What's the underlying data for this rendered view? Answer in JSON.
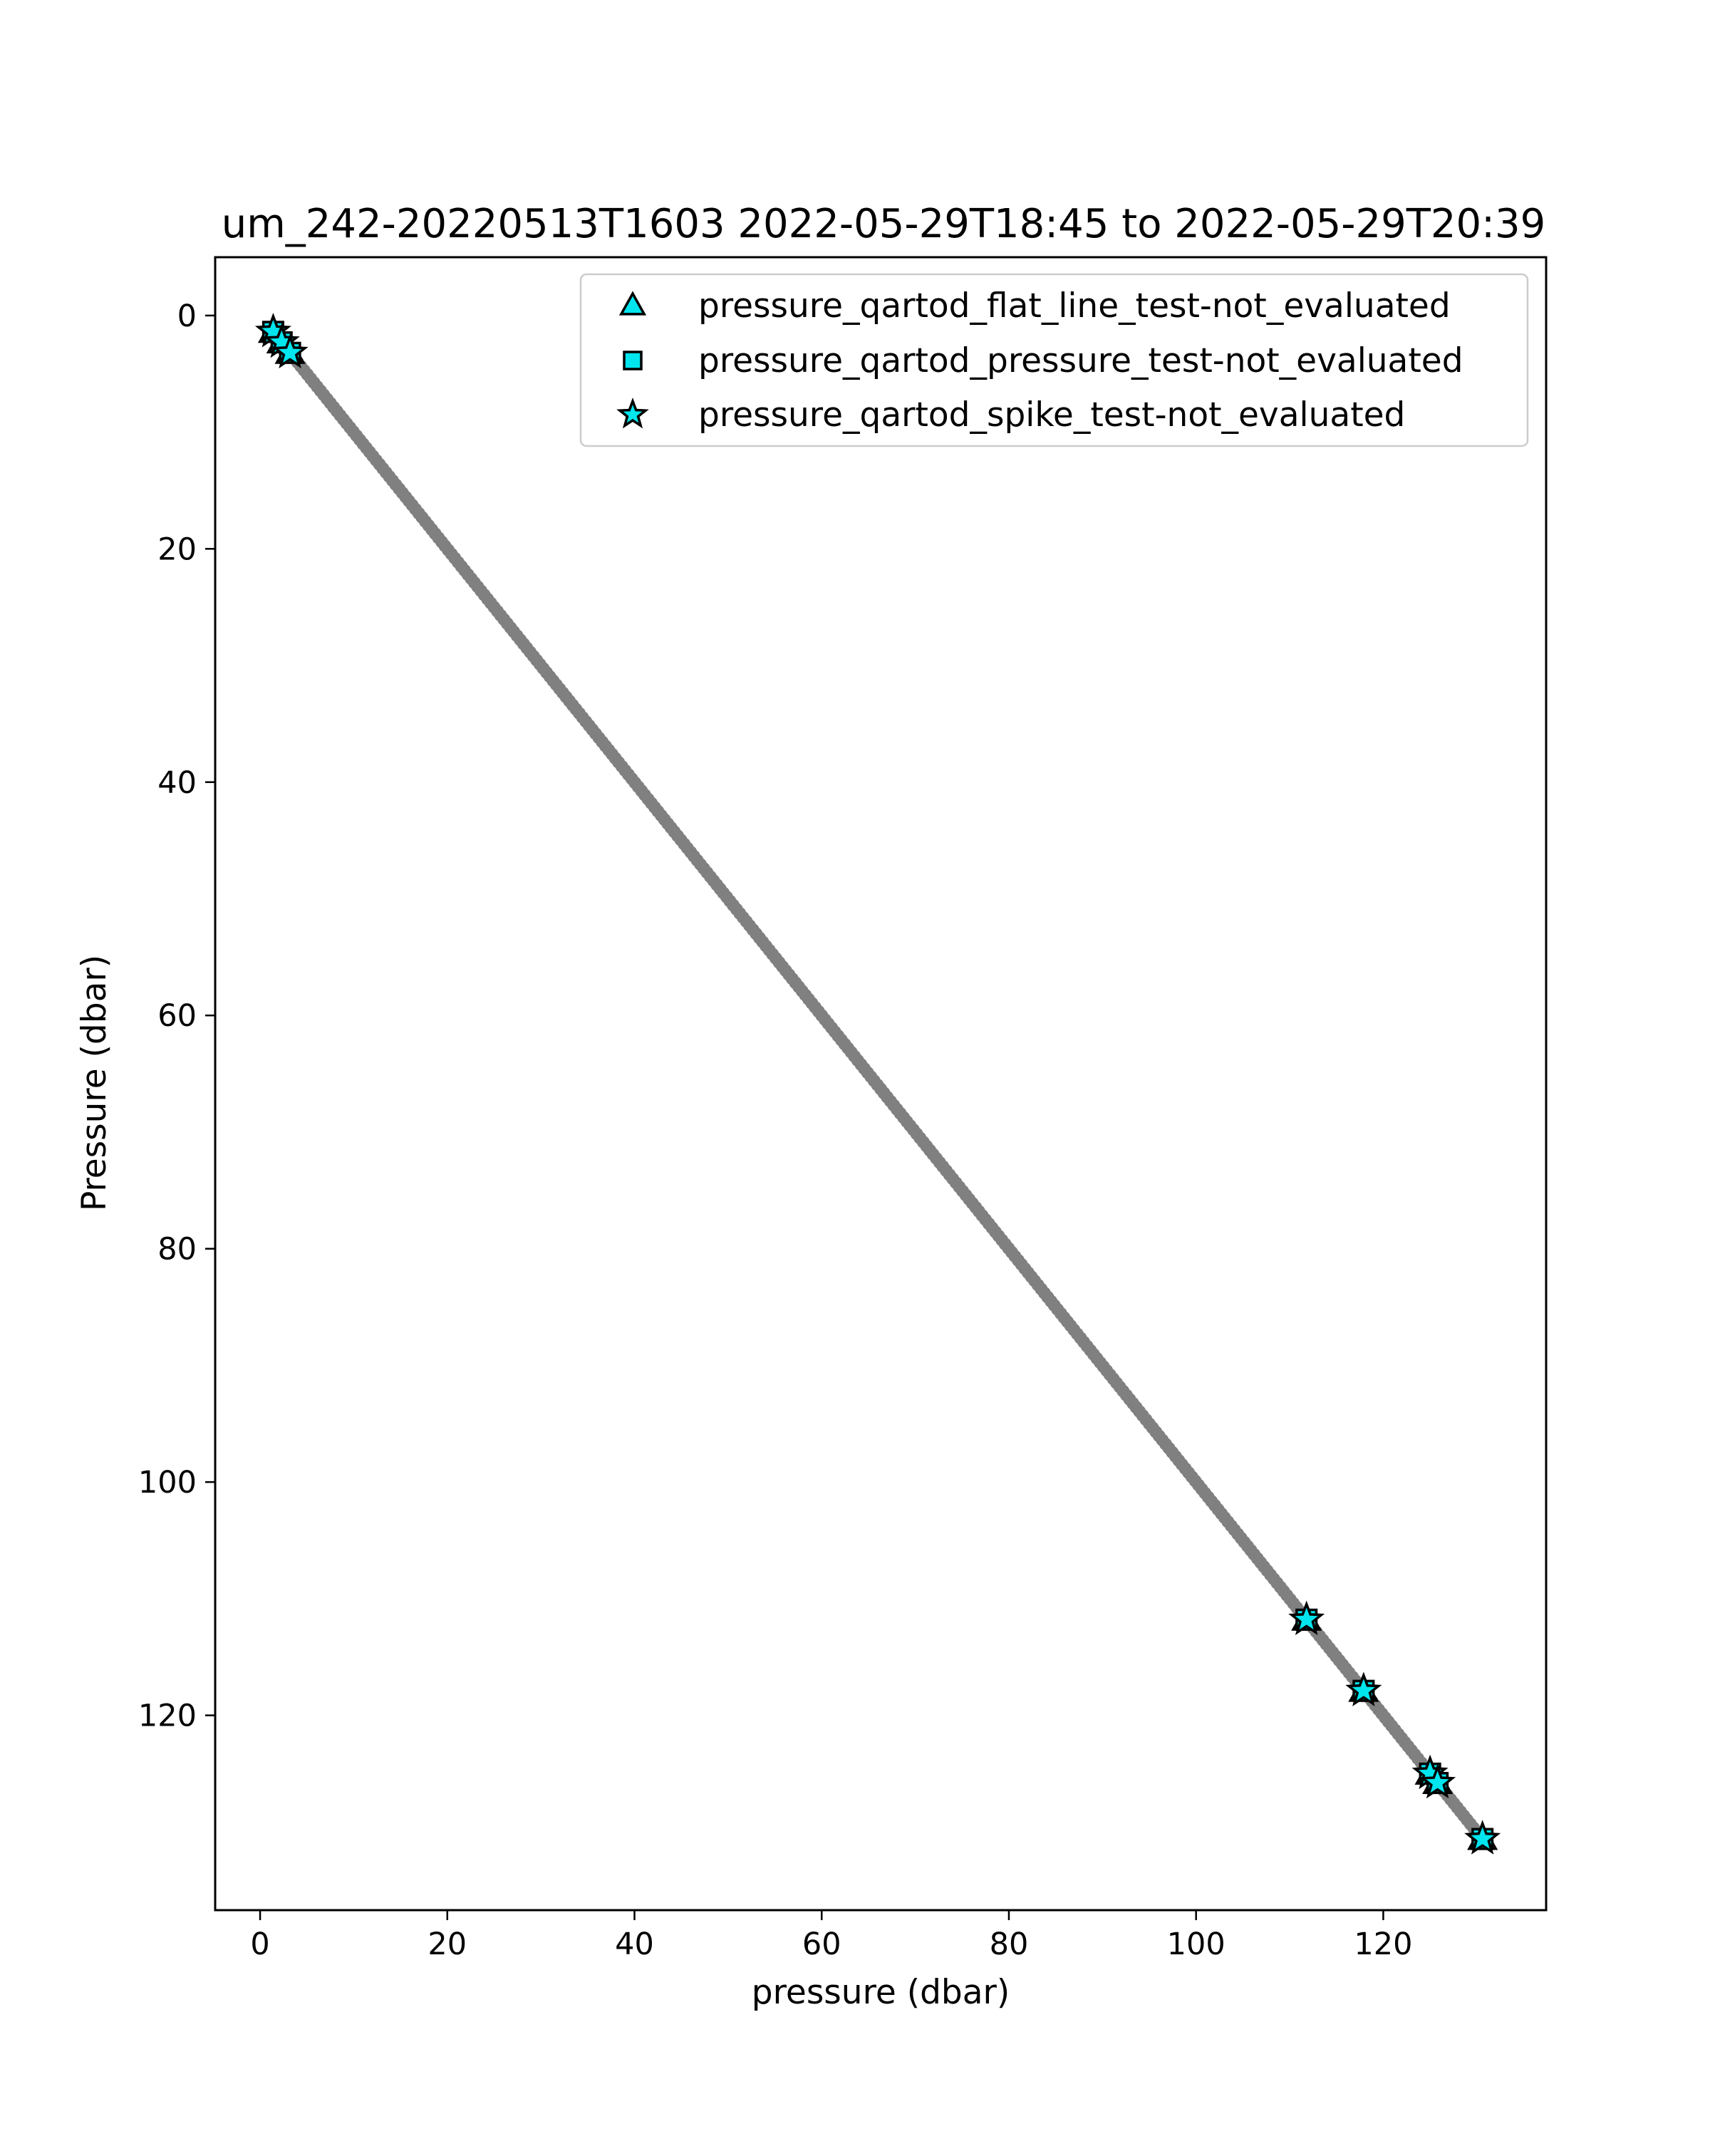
{
  "chart_data": {
    "type": "scatter",
    "title": "um_242-20220513T1603 2022-05-29T18:45 to 2022-05-29T20:39",
    "xlabel": "pressure (dbar)",
    "ylabel": "Pressure (dbar)",
    "xlim": [
      -4.8,
      137.4
    ],
    "ylim": [
      136.7,
      -5.0
    ],
    "y_inverted": true,
    "xticks": [
      0,
      20,
      40,
      60,
      80,
      100,
      120
    ],
    "yticks": [
      0,
      20,
      40,
      60,
      80,
      100,
      120
    ],
    "grid": false,
    "legend_position": "top-right",
    "base_series": {
      "color": "#808080",
      "range": [
        1.2,
        130.6
      ],
      "description_values_step": 1
    },
    "series": [
      {
        "name": "pressure_qartod_flat_line_test-not_evaluated",
        "marker": "triangle",
        "color": "#00e5ee",
        "points": [
          [
            1.4,
            1.4
          ],
          [
            2.3,
            2.3
          ],
          [
            3.2,
            3.2
          ],
          [
            111.8,
            111.8
          ],
          [
            117.9,
            117.9
          ],
          [
            125.0,
            125.0
          ],
          [
            125.8,
            125.8
          ],
          [
            130.6,
            130.6
          ]
        ]
      },
      {
        "name": "pressure_qartod_pressure_test-not_evaluated",
        "marker": "square",
        "color": "#00e5ee",
        "points": [
          [
            1.4,
            1.4
          ],
          [
            2.3,
            2.3
          ],
          [
            3.2,
            3.2
          ],
          [
            111.8,
            111.8
          ],
          [
            117.9,
            117.9
          ],
          [
            125.0,
            125.0
          ],
          [
            125.8,
            125.8
          ],
          [
            130.6,
            130.6
          ]
        ]
      },
      {
        "name": "pressure_qartod_spike_test-not_evaluated",
        "marker": "star",
        "color": "#00e5ee",
        "points": [
          [
            1.4,
            1.4
          ],
          [
            2.3,
            2.3
          ],
          [
            3.2,
            3.2
          ],
          [
            111.8,
            111.8
          ],
          [
            117.9,
            117.9
          ],
          [
            125.0,
            125.0
          ],
          [
            125.8,
            125.8
          ],
          [
            130.6,
            130.6
          ]
        ]
      }
    ]
  }
}
